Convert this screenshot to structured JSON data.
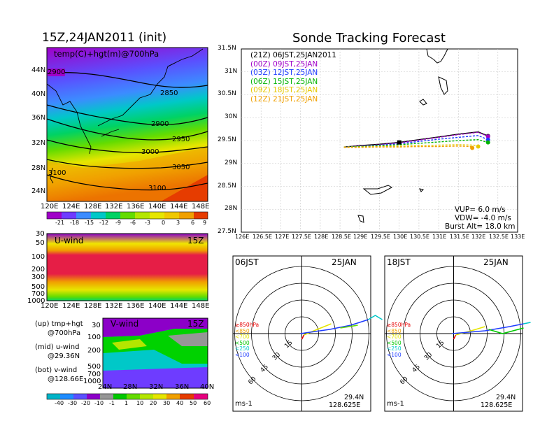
{
  "left": {
    "title": "15Z,24JAN2011 (init)",
    "map_label": "temp(C)+hgt(m)@700hPa",
    "lat_labels": [
      "44N",
      "40N",
      "36N",
      "32N",
      "28N",
      "24N"
    ],
    "lon_labels": [
      "120E",
      "124E",
      "128E",
      "132E",
      "136E",
      "140E",
      "144E",
      "148E"
    ],
    "contours": [
      "2850",
      "2900",
      "2950",
      "3000",
      "3050",
      "3100",
      "3100",
      "2900"
    ],
    "temp_colorbar": [
      "-21",
      "-18",
      "-15",
      "-12",
      "-9",
      "-6",
      "-3",
      "0",
      "3",
      "6",
      "9"
    ],
    "uwind_label": "U-wind",
    "uwind_time": "15Z",
    "pressure_labels": [
      "30",
      "50",
      "100",
      "200",
      "300",
      "500",
      "700",
      "1000"
    ],
    "vwind_label": "V-wind",
    "vwind_time": "15Z",
    "vwind_lat_labels": [
      "24N",
      "28N",
      "32N",
      "36N",
      "40N"
    ],
    "wind_colorbar": [
      "-40",
      "-30",
      "-20",
      "-10",
      "-1",
      "1",
      "10",
      "20",
      "30",
      "40",
      "50",
      "60"
    ],
    "legend_lines": [
      {
        "a": "(up) tmp+hgt",
        "b": "@700hPa"
      },
      {
        "a": "(mid) u-wind",
        "b": "@29.36N"
      },
      {
        "a": "(bot) v-wind",
        "b": "@128.66E"
      }
    ]
  },
  "right": {
    "title": "Sonde Tracking Forecast",
    "lat_labels": [
      "31.5N",
      "31N",
      "30.5N",
      "30N",
      "29.5N",
      "29N",
      "28.5N",
      "28N",
      "27.5N"
    ],
    "lon_labels": [
      "126E",
      "126.5E",
      "127E",
      "127.5E",
      "128E",
      "128.5E",
      "129E",
      "129.5E",
      "130E",
      "130.5E",
      "131E",
      "131.5E",
      "132E",
      "132.5E",
      "133E"
    ],
    "legend": [
      {
        "code": "(21Z)",
        "time": "06JST,25JAN2011",
        "color": "#000000"
      },
      {
        "code": "(00Z)",
        "time": "09JST,25JAN",
        "color": "#a000c8"
      },
      {
        "code": "(03Z)",
        "time": "12JST,25JAN",
        "color": "#1e3cff"
      },
      {
        "code": "(06Z)",
        "time": "15JST,25JAN",
        "color": "#00b400"
      },
      {
        "code": "(09Z)",
        "time": "18JST,25JAN",
        "color": "#e6c800"
      },
      {
        "code": "(12Z)",
        "time": "21JST,25JAN",
        "color": "#f0a000"
      }
    ],
    "params": [
      "VUP=  6.0  m/s",
      "VDW=  -4.0  m/s",
      "Burst Alt=  18.0  km"
    ],
    "hodographs": [
      {
        "left": "06JST",
        "right": "25JAN",
        "unit": "ms-1",
        "lat": "29.4N",
        "lon": "128.625E"
      },
      {
        "left": "18JST",
        "right": "25JAN",
        "unit": "ms-1",
        "lat": "29.4N",
        "lon": "128.625E"
      }
    ],
    "ring_labels": [
      "15",
      "30",
      "45",
      "60"
    ],
    "pressure_key": [
      {
        "label": "≥850hPa",
        "color": "#e60000"
      },
      {
        "label": "<850",
        "color": "#f0a000"
      },
      {
        "label": "<700",
        "color": "#e6e600"
      },
      {
        "label": "<500",
        "color": "#00c800"
      },
      {
        "label": "<250",
        "color": "#00c8c8"
      },
      {
        "label": "<100",
        "color": "#1e3cff"
      }
    ]
  },
  "chart_data": [
    {
      "type": "line",
      "title": "Sonde Tracking Forecast",
      "xlim": [
        126,
        133
      ],
      "ylim": [
        27.5,
        31.5
      ],
      "grid": true,
      "legend_position": "top-left",
      "series": [
        {
          "name": "(21Z) 06JST,25JAN2011",
          "color": "#000000",
          "x": [
            128.6,
            129.0,
            129.5,
            130.0,
            130.5,
            131.0,
            131.5,
            132.0,
            132.25
          ],
          "y": [
            29.36,
            29.39,
            29.42,
            29.46,
            29.52,
            29.58,
            29.64,
            29.69,
            29.6
          ]
        },
        {
          "name": "(00Z) 09JST,25JAN",
          "color": "#a000c8",
          "x": [
            128.6,
            129.0,
            129.5,
            130.0,
            130.5,
            131.0,
            131.5,
            132.0,
            132.25
          ],
          "y": [
            29.36,
            29.38,
            29.41,
            29.45,
            29.51,
            29.57,
            29.63,
            29.68,
            29.59
          ]
        },
        {
          "name": "(03Z) 12JST,25JAN",
          "color": "#1e3cff",
          "x": [
            128.6,
            129.0,
            129.5,
            130.0,
            130.5,
            131.0,
            131.5,
            132.0,
            132.25
          ],
          "y": [
            29.36,
            29.37,
            29.4,
            29.43,
            29.48,
            29.53,
            29.57,
            29.61,
            29.52
          ]
        },
        {
          "name": "(06Z) 15JST,25JAN",
          "color": "#00b400",
          "x": [
            128.6,
            129.0,
            129.5,
            130.0,
            130.5,
            131.0,
            131.5,
            132.0,
            132.25
          ],
          "y": [
            29.36,
            29.37,
            29.39,
            29.41,
            29.44,
            29.47,
            29.5,
            29.52,
            29.46
          ]
        },
        {
          "name": "(09Z) 18JST,25JAN",
          "color": "#e6c800",
          "x": [
            128.6,
            129.0,
            129.5,
            130.0,
            130.5,
            131.0,
            131.5,
            131.9,
            132.0
          ],
          "y": [
            29.36,
            29.36,
            29.37,
            29.38,
            29.39,
            29.4,
            29.41,
            29.4,
            29.37
          ]
        },
        {
          "name": "(12Z) 21JST,25JAN",
          "color": "#f0a000",
          "x": [
            128.6,
            129.0,
            129.5,
            130.0,
            130.5,
            131.0,
            131.5,
            131.8,
            131.85
          ],
          "y": [
            29.35,
            29.35,
            29.36,
            29.36,
            29.37,
            29.37,
            29.38,
            29.37,
            29.34
          ]
        }
      ]
    }
  ]
}
